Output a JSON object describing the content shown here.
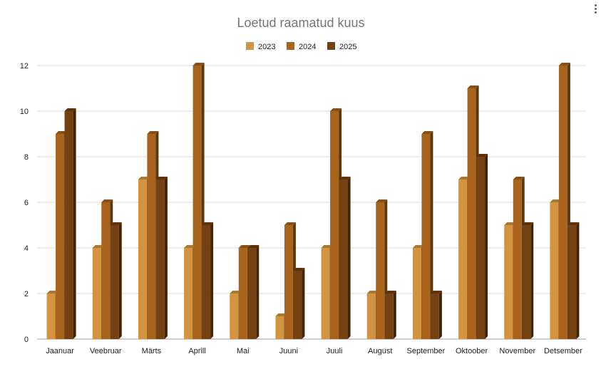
{
  "chart_data": {
    "type": "bar",
    "title": "Loetud raamatud kuus",
    "xlabel": "",
    "ylabel": "",
    "ylim": [
      0,
      12
    ],
    "yticks": [
      0,
      2,
      4,
      6,
      8,
      10,
      12
    ],
    "grid": true,
    "legend_position": "top",
    "style": "3d-columns",
    "categories": [
      "Jaanuar",
      "Veebruar",
      "Märts",
      "Aprill",
      "Mai",
      "Juuni",
      "Juuli",
      "August",
      "September",
      "Oktoober",
      "November",
      "Detsember"
    ],
    "series": [
      {
        "name": "2023",
        "color": "#D4933F",
        "values": [
          2,
          4,
          7,
          4,
          2,
          1,
          4,
          2,
          4,
          7,
          5,
          6
        ]
      },
      {
        "name": "2024",
        "color": "#A8641C",
        "values": [
          9,
          6,
          9,
          12,
          4,
          5,
          10,
          6,
          9,
          11,
          7,
          12
        ]
      },
      {
        "name": "2025",
        "color": "#754110",
        "values": [
          10,
          5,
          7,
          5,
          4,
          3,
          7,
          2,
          2,
          8,
          5,
          5
        ]
      }
    ]
  },
  "ui": {
    "menu_icon": "more-vert-icon"
  }
}
